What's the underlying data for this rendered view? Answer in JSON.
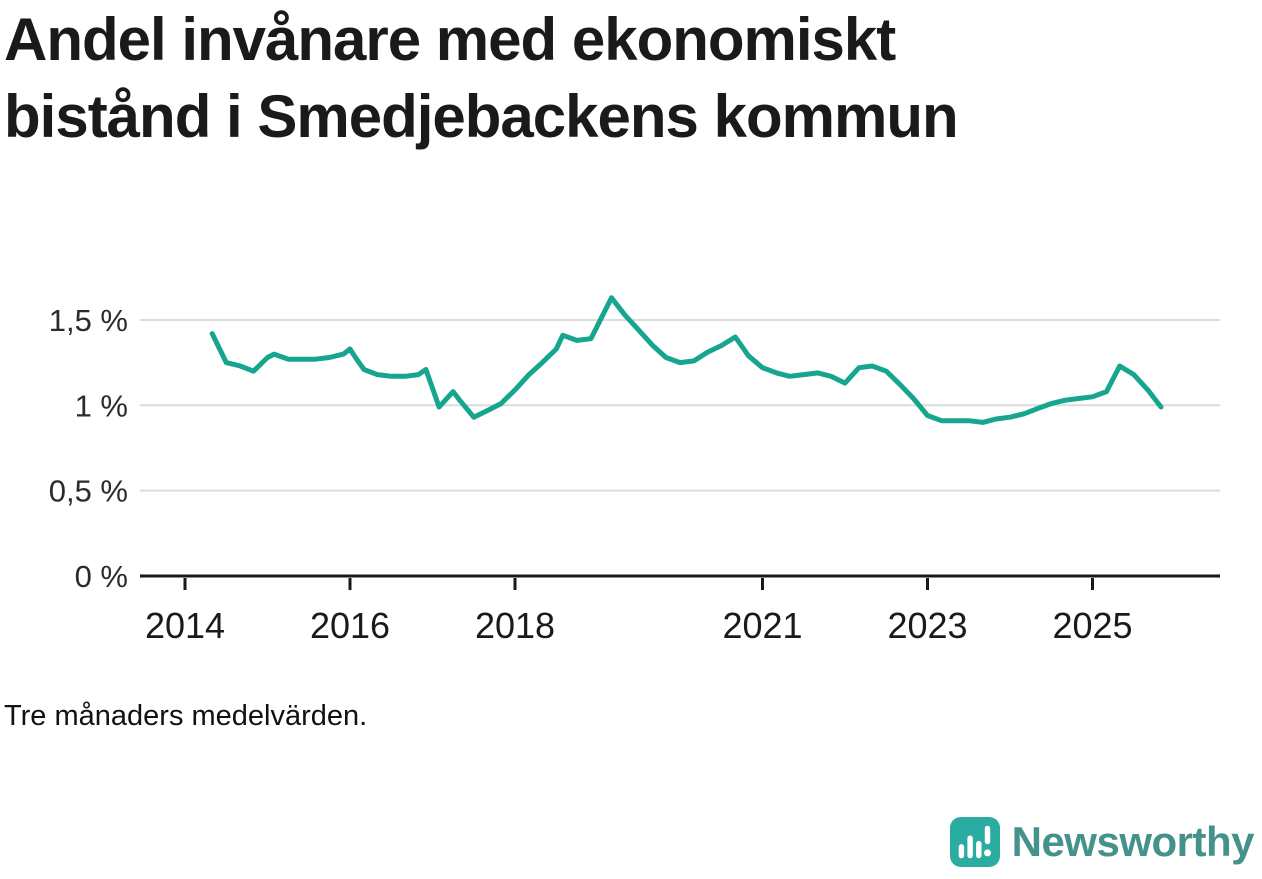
{
  "title": "Andel invånare med ekonomiskt bistånd i Smedjebackens kommun",
  "footnote": "Tre månaders medelvärden.",
  "branding": {
    "wordmark": "Newsworthy"
  },
  "colors": {
    "line": "#16a58e",
    "grid": "#dcdcdc",
    "axis": "#191919",
    "tick_text": "#2b2b2b",
    "logo": "#2aada0",
    "wordmark_text": "#45928c"
  },
  "chart_data": {
    "type": "line",
    "title": "Andel invånare med ekonomiskt bistånd i Smedjebackens kommun",
    "note": "Tre månaders medelvärden.",
    "unit": "%",
    "ylim": [
      0,
      1.9
    ],
    "grid": "horizontal",
    "legend": "none",
    "y_ticks": [
      {
        "value": 0,
        "label": "0 %"
      },
      {
        "value": 0.5,
        "label": "0,5 %"
      },
      {
        "value": 1,
        "label": "1 %"
      },
      {
        "value": 1.5,
        "label": "1,5 %"
      }
    ],
    "x_ticks": [
      {
        "value": 2014,
        "label": "2014"
      },
      {
        "value": 2016,
        "label": "2016"
      },
      {
        "value": 2018,
        "label": "2018"
      },
      {
        "value": 2021,
        "label": "2021"
      },
      {
        "value": 2023,
        "label": "2023"
      },
      {
        "value": 2025,
        "label": "2025"
      }
    ],
    "series": [
      {
        "name": "Andel invånare med ekonomiskt bistånd",
        "color": "#16a58e",
        "x": [
          2014.33,
          2014.5,
          2014.67,
          2014.83,
          2015.0,
          2015.08,
          2015.25,
          2015.42,
          2015.58,
          2015.75,
          2015.92,
          2016.0,
          2016.08,
          2016.17,
          2016.33,
          2016.5,
          2016.67,
          2016.83,
          2016.92,
          2017.08,
          2017.25,
          2017.33,
          2017.5,
          2017.67,
          2017.83,
          2018.0,
          2018.17,
          2018.33,
          2018.5,
          2018.58,
          2018.75,
          2018.92,
          2019.17,
          2019.33,
          2019.5,
          2019.67,
          2019.83,
          2020.0,
          2020.17,
          2020.33,
          2020.5,
          2020.67,
          2020.83,
          2021.0,
          2021.17,
          2021.33,
          2021.5,
          2021.67,
          2021.83,
          2022.0,
          2022.17,
          2022.33,
          2022.5,
          2022.67,
          2022.83,
          2023.0,
          2023.17,
          2023.33,
          2023.5,
          2023.67,
          2023.83,
          2024.0,
          2024.17,
          2024.33,
          2024.5,
          2024.67,
          2024.83,
          2025.0,
          2025.17,
          2025.33,
          2025.5,
          2025.67,
          2025.83
        ],
        "values": [
          1.42,
          1.25,
          1.23,
          1.2,
          1.28,
          1.3,
          1.27,
          1.27,
          1.27,
          1.28,
          1.3,
          1.33,
          1.27,
          1.21,
          1.18,
          1.17,
          1.17,
          1.18,
          1.21,
          0.99,
          1.08,
          1.03,
          0.93,
          0.97,
          1.01,
          1.09,
          1.18,
          1.25,
          1.33,
          1.41,
          1.38,
          1.39,
          1.63,
          1.53,
          1.44,
          1.35,
          1.28,
          1.25,
          1.26,
          1.31,
          1.35,
          1.4,
          1.29,
          1.22,
          1.19,
          1.17,
          1.18,
          1.19,
          1.17,
          1.13,
          1.22,
          1.23,
          1.2,
          1.12,
          1.04,
          0.94,
          0.91,
          0.91,
          0.91,
          0.9,
          0.92,
          0.93,
          0.95,
          0.98,
          1.01,
          1.03,
          1.04,
          1.05,
          1.08,
          1.23,
          1.18,
          1.09,
          0.99
        ]
      }
    ]
  }
}
